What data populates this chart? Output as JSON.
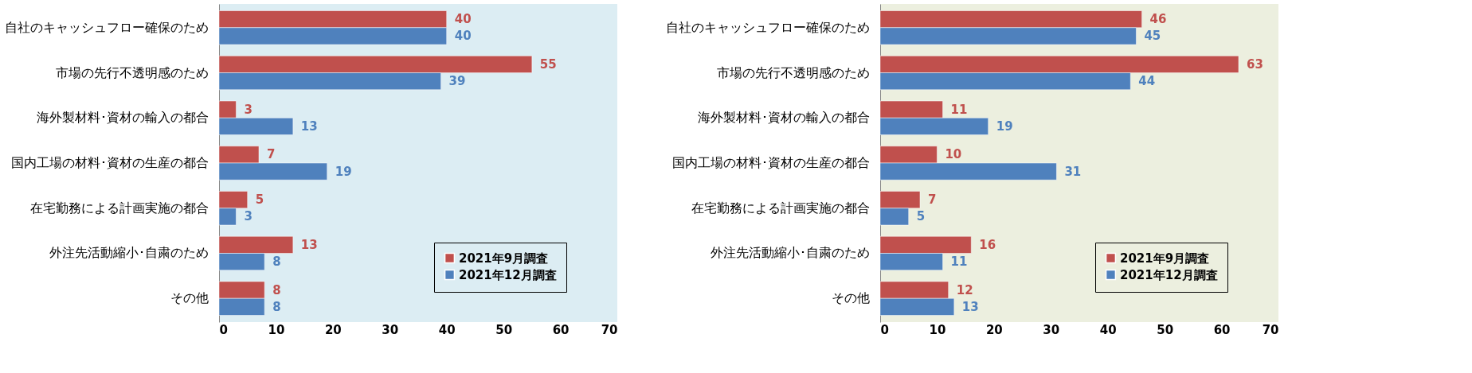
{
  "chart_data": [
    {
      "type": "bar",
      "orientation": "horizontal",
      "categories": [
        "自社のキャッシュフロー確保のため",
        "市場の先行不透明感のため",
        "海外製材料･資材の輸入の都合",
        "国内工場の材料･資材の生産の都合",
        "在宅勤務による計画実施の都合",
        "外注先活動縮小･自粛のため",
        "その他"
      ],
      "series": [
        {
          "name": "2021年9月調査",
          "color": "#c0504d",
          "values": [
            40,
            55,
            3,
            7,
            5,
            13,
            8
          ]
        },
        {
          "name": "2021年12月調査",
          "color": "#4f81bd",
          "values": [
            40,
            39,
            13,
            19,
            3,
            8,
            8
          ]
        }
      ],
      "xlim": [
        0,
        70
      ],
      "xticks": [
        0,
        10,
        20,
        30,
        40,
        50,
        60,
        70
      ],
      "data_labels": true,
      "legend": "bottom right",
      "grid": false
    },
    {
      "type": "bar",
      "orientation": "horizontal",
      "categories": [
        "自社のキャッシュフロー確保のため",
        "市場の先行不透明感のため",
        "海外製材料･資材の輸入の都合",
        "国内工場の材料･資材の生産の都合",
        "在宅勤務による計画実施の都合",
        "外注先活動縮小･自粛のため",
        "その他"
      ],
      "series": [
        {
          "name": "2021年9月調査",
          "color": "#c0504d",
          "values": [
            46,
            63,
            11,
            10,
            7,
            16,
            12
          ]
        },
        {
          "name": "2021年12月調査",
          "color": "#4f81bd",
          "values": [
            45,
            44,
            19,
            31,
            5,
            11,
            13
          ]
        }
      ],
      "xlim": [
        0,
        70
      ],
      "xticks": [
        0,
        10,
        20,
        30,
        40,
        50,
        60,
        70
      ],
      "data_labels": true,
      "legend": "bottom right",
      "grid": false
    }
  ]
}
